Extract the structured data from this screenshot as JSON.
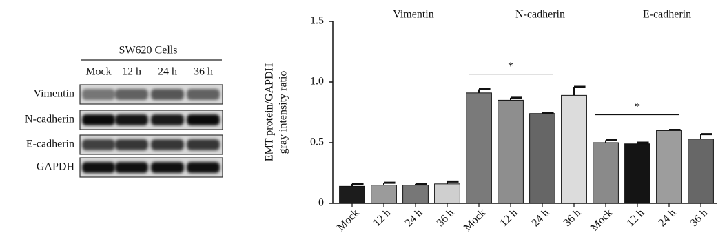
{
  "blot": {
    "title": "SW620 Cells",
    "lanes": [
      "Mock",
      "12 h",
      "24 h",
      "36 h"
    ],
    "proteins": [
      "Vimentin",
      "N-cadherin",
      "E-cadherin",
      "GAPDH"
    ]
  },
  "chart_data": {
    "type": "bar",
    "groups": [
      "Vimentin",
      "N-cadherin",
      "E-cadherin"
    ],
    "categories": [
      "Mock",
      "12 h",
      "24 h",
      "36 h",
      "Mock",
      "12 h",
      "24 h",
      "36 h",
      "Mock",
      "12 h",
      "24 h",
      "36 h"
    ],
    "values": [
      0.14,
      0.15,
      0.15,
      0.16,
      0.91,
      0.85,
      0.74,
      0.89,
      0.5,
      0.49,
      0.6,
      0.53
    ],
    "errors": [
      0.02,
      0.02,
      0.01,
      0.02,
      0.03,
      0.02,
      0.005,
      0.07,
      0.02,
      0.01,
      0.005,
      0.04
    ],
    "colors": [
      "#1c1c1c",
      "#9b9b9b",
      "#777777",
      "#cfcfcf",
      "#7a7a7a",
      "#8e8e8e",
      "#666666",
      "#dcdcdc",
      "#8a8a8a",
      "#141414",
      "#9d9d9d",
      "#676767"
    ],
    "ylabel": [
      "EMT protein/GAPDH",
      "gray intensity ratio"
    ],
    "ylim": [
      0,
      1.5
    ],
    "yticks": [
      0,
      0.5,
      {
        "value": 1.0,
        "label": "1.0"
      },
      1.5
    ],
    "annotations": [
      {
        "text": "*",
        "from": 4,
        "to": 6
      },
      {
        "text": "*",
        "from": 8,
        "to": 10
      }
    ]
  }
}
